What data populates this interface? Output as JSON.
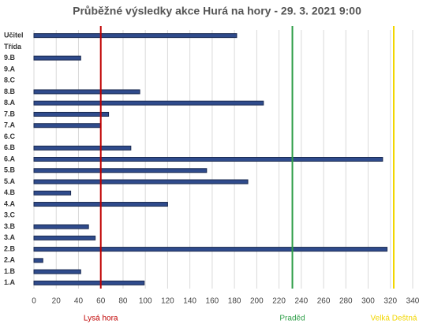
{
  "chart_data": {
    "type": "hbar",
    "title": "Průběžné výsledky akce Hurá na hory - 29. 3. 2021 9:00",
    "categories": [
      "Učitel",
      "Třída",
      "9.B",
      "9.A",
      "8.C",
      "8.B",
      "8.A",
      "7.B",
      "7.A",
      "6.C",
      "6.B",
      "6.A",
      "5.B",
      "5.A",
      "4.B",
      "4.A",
      "3.C",
      "3.B",
      "3.A",
      "2.B",
      "2.A",
      "1.B",
      "1.A"
    ],
    "values": [
      182,
      0,
      42,
      0,
      0,
      95,
      206,
      67,
      60,
      0,
      87,
      313,
      155,
      192,
      33,
      120,
      0,
      49,
      55,
      317,
      8,
      42,
      99
    ],
    "color": "#2f4b8c",
    "xlim": [
      0,
      340
    ],
    "xticks": [
      0,
      20,
      40,
      60,
      80,
      100,
      120,
      140,
      160,
      180,
      200,
      220,
      240,
      260,
      280,
      300,
      320,
      340
    ],
    "grid": true,
    "reference_lines": [
      {
        "name": "Lysá hora",
        "value": 60,
        "color": "#c00000"
      },
      {
        "name": "Praděd",
        "value": 232,
        "color": "#2e9e48"
      },
      {
        "name": "Velká Deštná",
        "value": 323,
        "color": "#f2d600"
      }
    ]
  }
}
